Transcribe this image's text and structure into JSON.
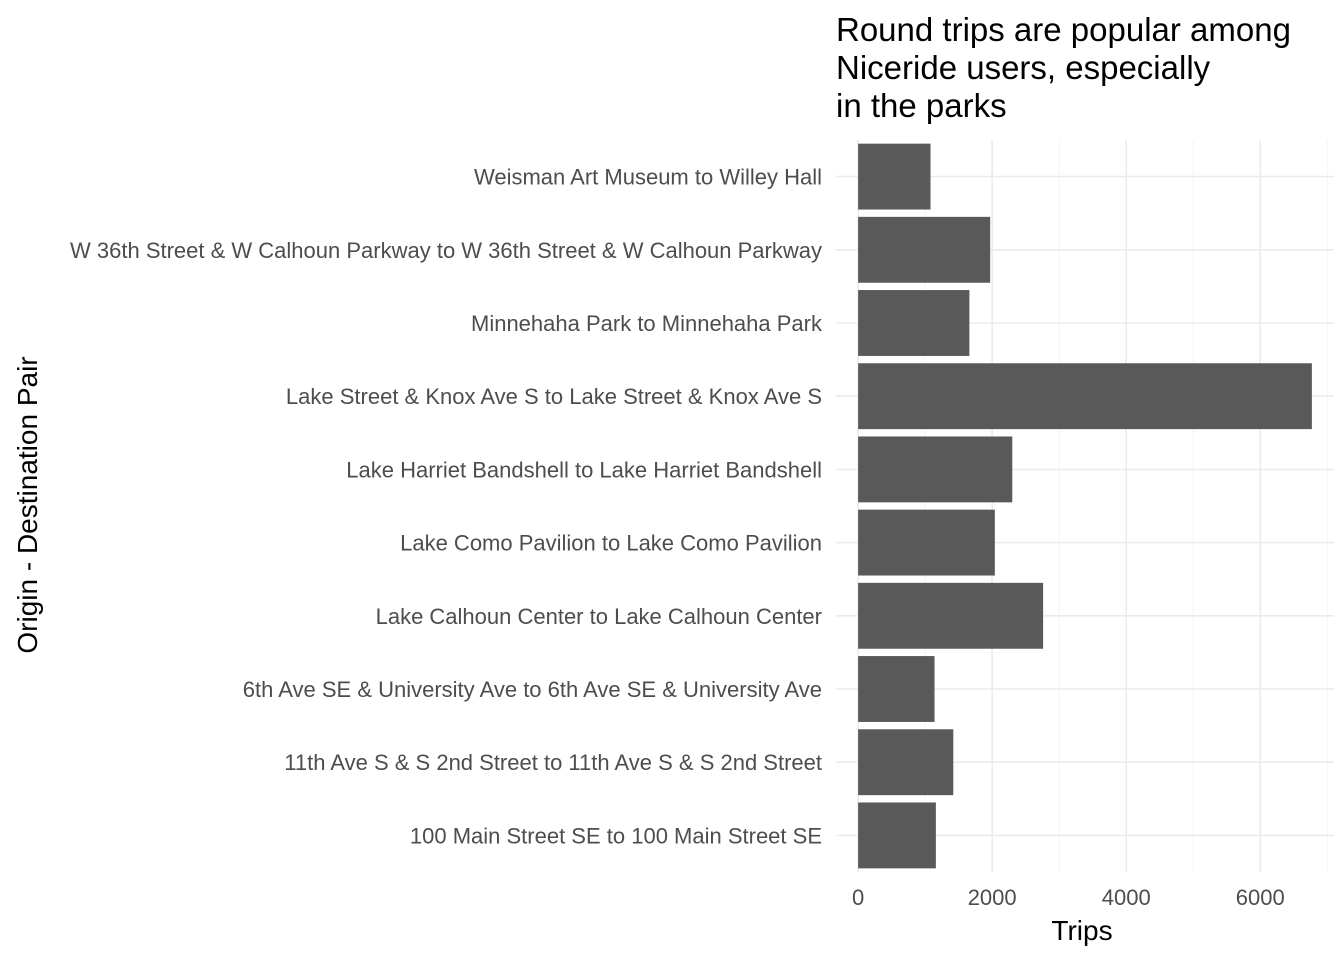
{
  "chart_data": {
    "type": "bar",
    "orientation": "horizontal",
    "title_lines": [
      "Round trips are popular among",
      "Niceride users, especially",
      "in the parks"
    ],
    "xlabel": "Trips",
    "ylabel": "Origin - Destination Pair",
    "categories": [
      "Weisman Art Museum to Willey Hall",
      "W 36th Street & W Calhoun Parkway to W 36th Street & W Calhoun Parkway",
      "Minnehaha Park to Minnehaha Park",
      "Lake Street & Knox Ave S to Lake Street & Knox Ave S",
      "Lake Harriet Bandshell to Lake Harriet Bandshell",
      "Lake Como Pavilion to Lake Como Pavilion",
      "Lake Calhoun Center to Lake Calhoun Center",
      "6th Ave SE & University Ave to 6th Ave SE & University Ave",
      "11th Ave S & S 2nd Street to 11th Ave S & S 2nd Street",
      "100 Main Street SE to 100 Main Street SE"
    ],
    "values": [
      1080,
      1970,
      1660,
      6770,
      2300,
      2040,
      2760,
      1140,
      1420,
      1160
    ],
    "xlim": [
      -330,
      7100
    ],
    "xticks": [
      0,
      2000,
      4000,
      6000
    ],
    "xtick_labels": [
      "0",
      "2000",
      "4000",
      "6000"
    ],
    "bar_color": "#595959",
    "grid": true
  }
}
